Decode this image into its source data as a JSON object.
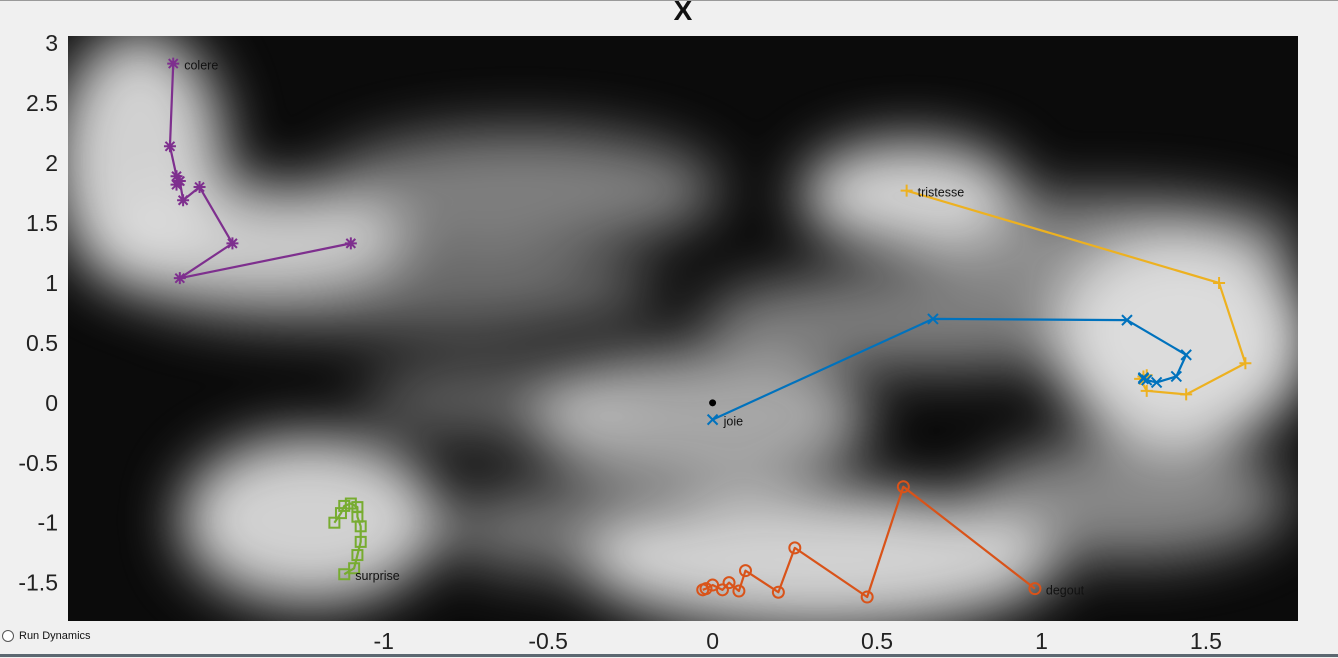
{
  "figure": {
    "title_glyph": "X",
    "run_dynamics_label": "Run Dynamics",
    "run_dynamics_checked": false
  },
  "chart_data": {
    "type": "line",
    "title": "",
    "xlabel": "",
    "ylabel": "",
    "xlim": [
      -1.96,
      1.78
    ],
    "ylim": [
      -1.82,
      3.06
    ],
    "x_ticks": [
      "-1",
      "-0.5",
      "0",
      "0.5",
      "1",
      "1.5"
    ],
    "x_tick_values": [
      -1,
      -0.5,
      0,
      0.5,
      1,
      1.5
    ],
    "y_ticks": [
      "3",
      "2.5",
      "2",
      "1.5",
      "1",
      "0.5",
      "0",
      "-0.5",
      "-1",
      "-1.5"
    ],
    "y_tick_values": [
      3,
      2.5,
      2,
      1.5,
      1,
      0.5,
      0,
      -0.5,
      -1,
      -1.5
    ],
    "background": "grayscale density heatmap",
    "origin_point": {
      "x": 0.0,
      "y": 0.0,
      "color": "#000000"
    },
    "series": [
      {
        "name": "colere",
        "color": "#7e2f8e",
        "marker": "star",
        "x": [
          -1.64,
          -1.65,
          -1.63,
          -1.63,
          -1.62,
          -1.61,
          -1.56,
          -1.46,
          -1.62,
          -1.1
        ],
        "y": [
          2.83,
          2.14,
          1.89,
          1.82,
          1.85,
          1.69,
          1.8,
          1.33,
          1.04,
          1.33
        ],
        "label_point": 0
      },
      {
        "name": "tristesse",
        "color": "#edb120",
        "marker": "plus",
        "x": [
          0.59,
          1.54,
          1.62,
          1.44,
          1.32,
          1.3,
          1.31,
          1.32
        ],
        "y": [
          1.77,
          1.0,
          0.33,
          0.07,
          0.1,
          0.2,
          0.22,
          0.23
        ],
        "label_point": 0
      },
      {
        "name": "joie",
        "color": "#0072bd",
        "marker": "x",
        "x": [
          0.0,
          0.67,
          1.26,
          1.44,
          1.41,
          1.35,
          1.32,
          1.31,
          1.31
        ],
        "y": [
          -0.14,
          0.7,
          0.69,
          0.4,
          0.22,
          0.17,
          0.19,
          0.2,
          0.21
        ],
        "label_point": 0
      },
      {
        "name": "degout",
        "color": "#d95319",
        "marker": "circle",
        "x": [
          0.98,
          0.58,
          0.47,
          0.25,
          0.2,
          0.1,
          0.08,
          0.05,
          0.03,
          0.0,
          -0.02,
          -0.03
        ],
        "y": [
          -1.55,
          -0.7,
          -1.62,
          -1.21,
          -1.58,
          -1.4,
          -1.57,
          -1.5,
          -1.56,
          -1.52,
          -1.55,
          -1.56
        ],
        "label_point": 0
      },
      {
        "name": "surprise",
        "color": "#77ac30",
        "marker": "square",
        "x": [
          -1.12,
          -1.09,
          -1.08,
          -1.07,
          -1.07,
          -1.08,
          -1.08,
          -1.1,
          -1.12,
          -1.13,
          -1.15
        ],
        "y": [
          -1.43,
          -1.38,
          -1.27,
          -1.16,
          -1.03,
          -0.95,
          -0.87,
          -0.84,
          -0.86,
          -0.92,
          -1.0
        ],
        "label_point": 0
      }
    ]
  }
}
